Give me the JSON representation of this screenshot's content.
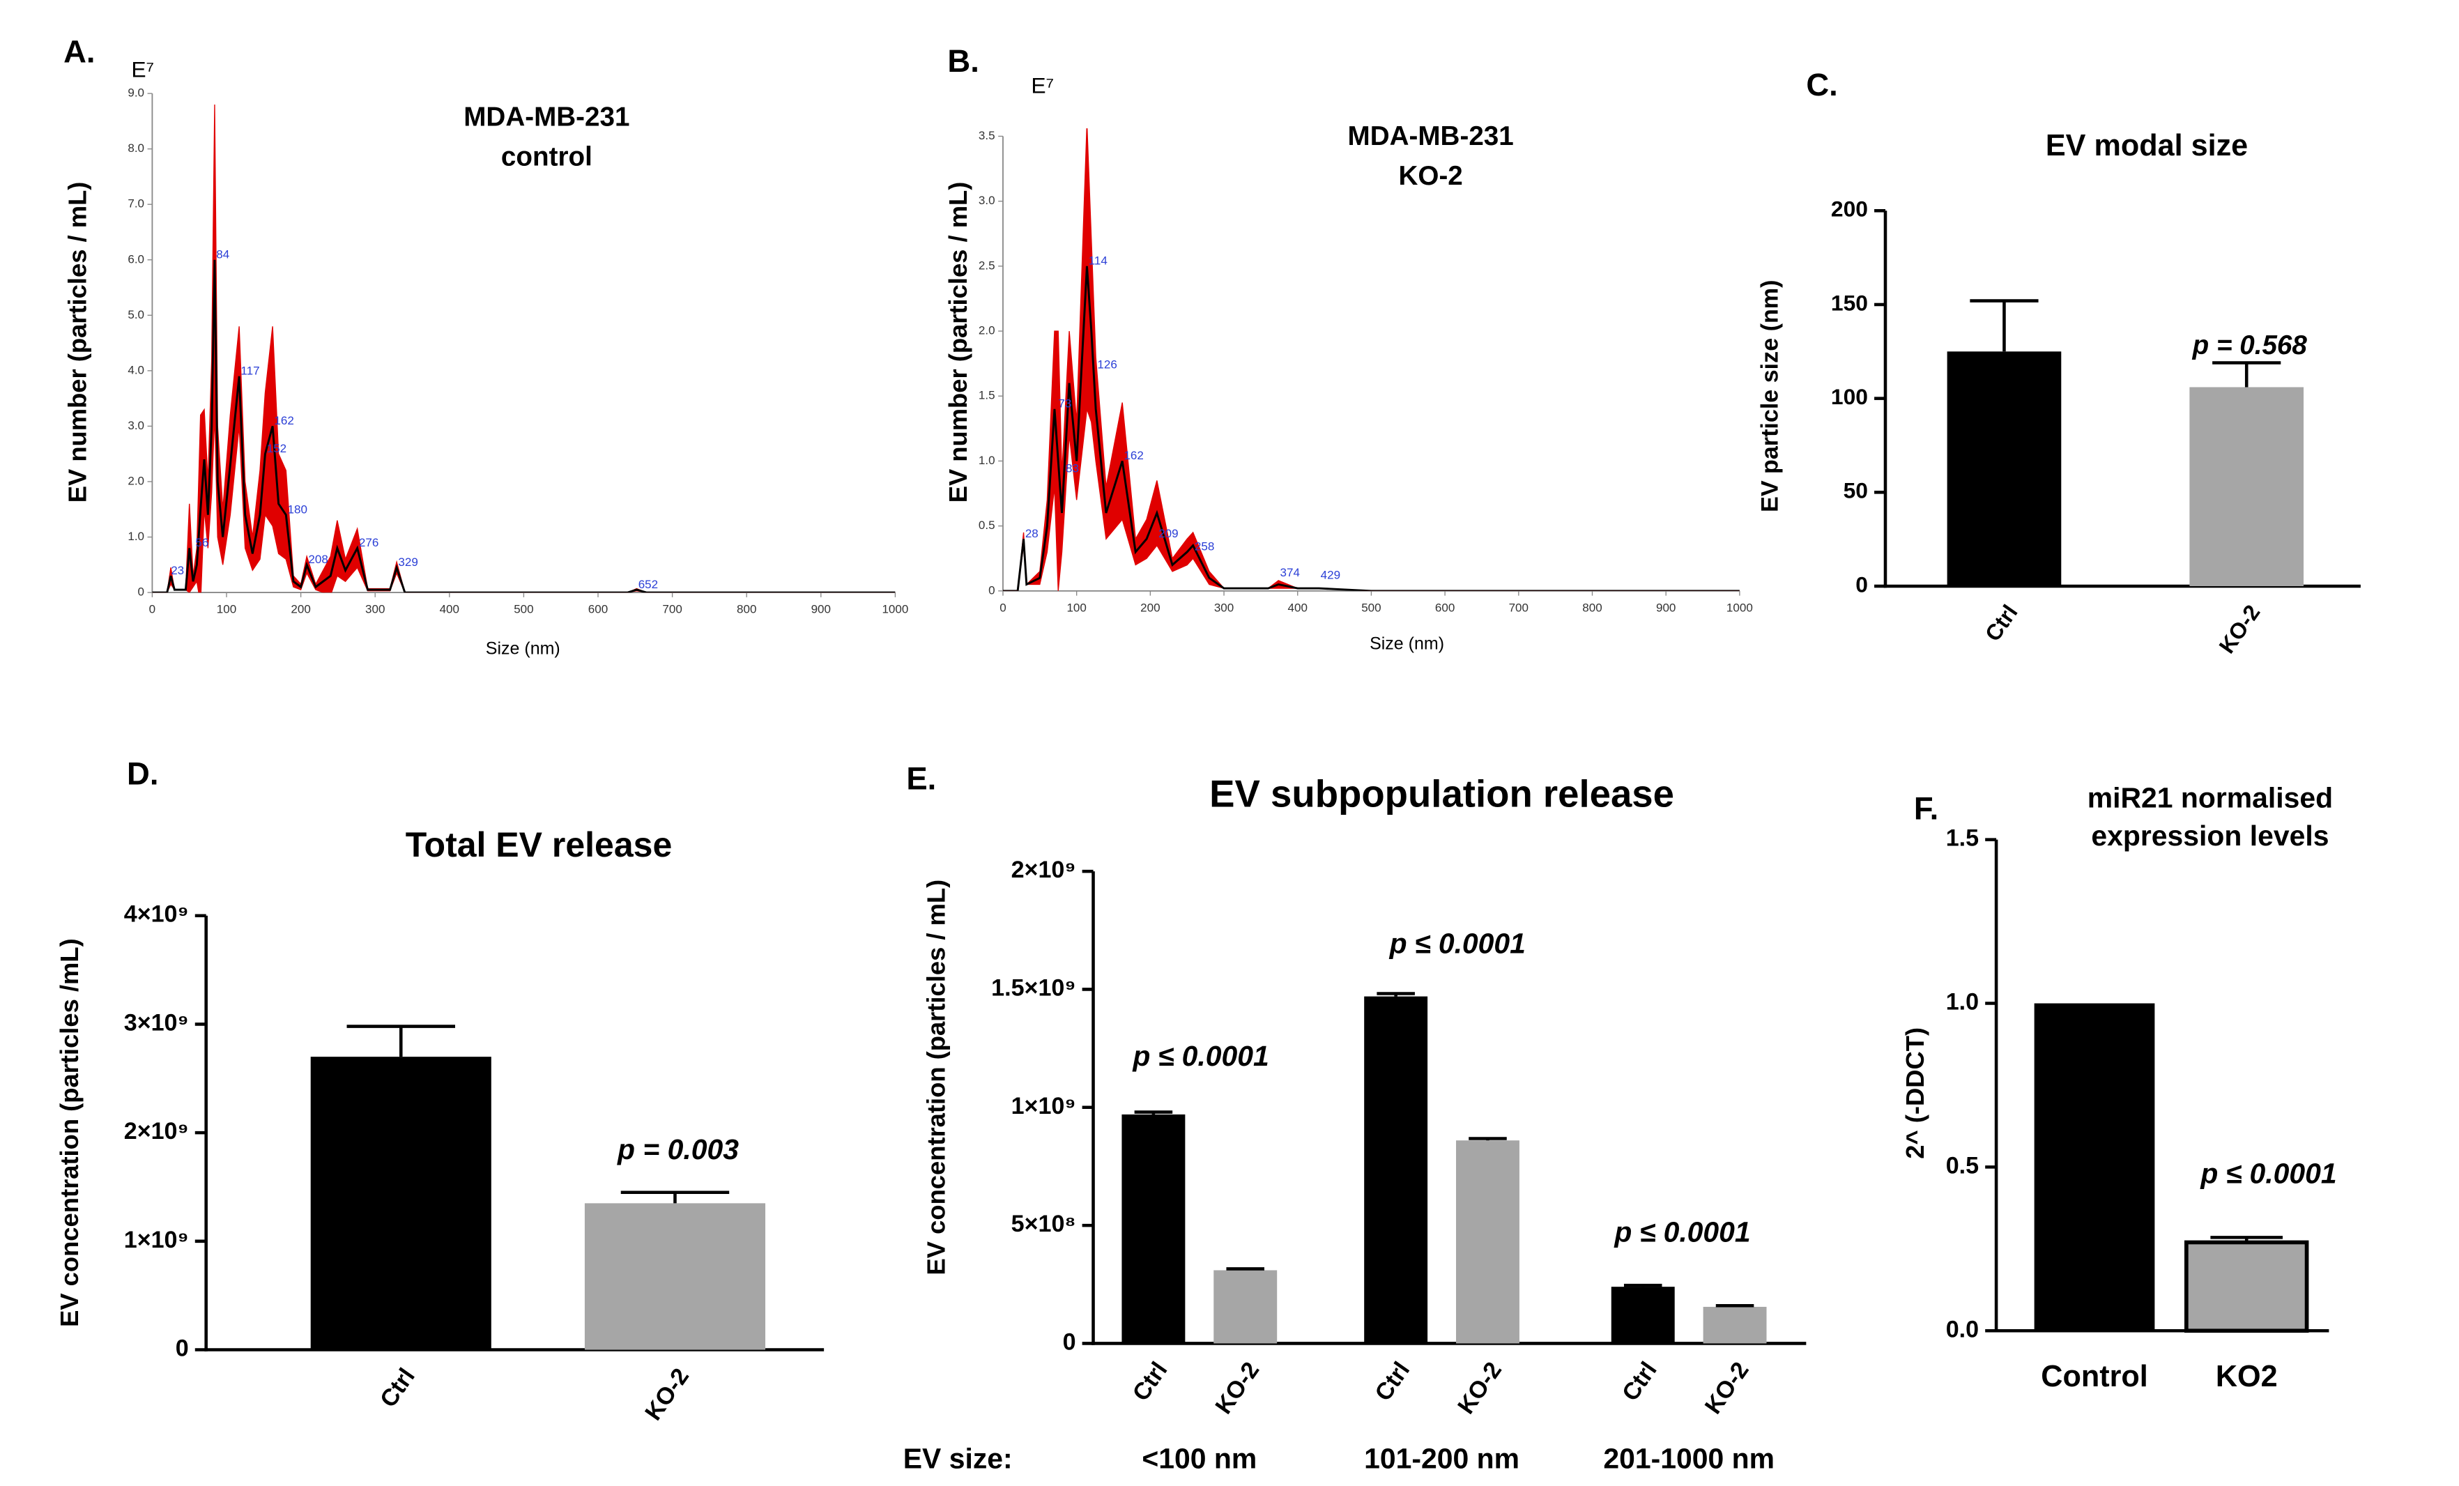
{
  "chart_data": [
    {
      "type": "line",
      "panel_label": "A.",
      "y_unit": "E⁷",
      "title": [
        "MDA-MB-231",
        "control"
      ],
      "x_label": "Size (nm)",
      "y_label": "EV number (particles / mL)",
      "x": [
        0,
        20,
        25,
        30,
        45,
        50,
        55,
        60,
        65,
        70,
        75,
        80,
        84,
        88,
        95,
        105,
        117,
        125,
        135,
        145,
        152,
        162,
        170,
        180,
        190,
        200,
        208,
        220,
        240,
        249,
        260,
        276,
        290,
        320,
        329,
        340,
        400,
        640,
        652,
        665,
        1000
      ],
      "values": [
        0,
        0,
        0.3,
        0.05,
        0.05,
        0.8,
        0.2,
        0.5,
        1.5,
        2.4,
        1.4,
        3.0,
        6.0,
        2.0,
        1.0,
        2.3,
        3.9,
        1.4,
        0.7,
        1.4,
        2.5,
        3.0,
        1.6,
        1.4,
        0.2,
        0.1,
        0.5,
        0.1,
        0.3,
        0.8,
        0.4,
        0.8,
        0.05,
        0.05,
        0.45,
        0,
        0,
        0,
        0.05,
        0,
        0
      ],
      "errors": [
        0,
        0,
        0.15,
        0,
        0,
        0.8,
        0.1,
        0.3,
        1.7,
        0.9,
        0.6,
        1.2,
        2.8,
        1.0,
        0.5,
        0.9,
        0.9,
        0.6,
        0.3,
        0.8,
        1.1,
        1.8,
        0.9,
        0.8,
        0.1,
        0.05,
        0.15,
        0.05,
        0.35,
        0.5,
        0.2,
        0.35,
        0.02,
        0.02,
        0.1,
        0,
        0,
        0,
        0.02,
        0,
        0
      ],
      "color": "#000000",
      "band_color": "#e00000",
      "annotation_color": "#2b3fd6",
      "annotations": [
        {
          "x": 23,
          "y": 0.3,
          "label": "23"
        },
        {
          "x": 56,
          "y": 0.8,
          "label": "56"
        },
        {
          "x": 84,
          "y": 6.0,
          "label": "84"
        },
        {
          "x": 117,
          "y": 3.9,
          "label": "117"
        },
        {
          "x": 152,
          "y": 2.5,
          "label": "152"
        },
        {
          "x": 162,
          "y": 3.0,
          "label": "162"
        },
        {
          "x": 180,
          "y": 1.4,
          "label": "180"
        },
        {
          "x": 208,
          "y": 0.5,
          "label": "208"
        },
        {
          "x": 276,
          "y": 0.8,
          "label": "276"
        },
        {
          "x": 329,
          "y": 0.45,
          "label": "329"
        },
        {
          "x": 652,
          "y": 0.05,
          "label": "652"
        }
      ],
      "xlim": [
        0,
        1000
      ],
      "xticks": [
        0,
        100,
        200,
        300,
        400,
        500,
        600,
        700,
        800,
        900,
        1000
      ],
      "ylim": [
        0,
        9
      ],
      "yticks": [
        0,
        {
          "value": 1,
          "label": "1.0"
        },
        {
          "value": 2,
          "label": "2.0"
        },
        {
          "value": 3,
          "label": "3.0"
        },
        {
          "value": 4,
          "label": "4.0"
        },
        {
          "value": 5,
          "label": "5.0"
        },
        {
          "value": 6,
          "label": "6.0"
        },
        {
          "value": 7,
          "label": "7.0"
        },
        {
          "value": 8,
          "label": "8.0"
        },
        {
          "value": 9,
          "label": "9.0"
        }
      ]
    },
    {
      "type": "line",
      "panel_label": "B.",
      "y_unit": "E⁷",
      "title": [
        "MDA-MB-231",
        "KO-2"
      ],
      "x_label": "Size (nm)",
      "y_label": "EV number (particles / mL)",
      "x": [
        0,
        20,
        28,
        32,
        50,
        60,
        70,
        75,
        80,
        90,
        100,
        114,
        120,
        126,
        140,
        162,
        180,
        195,
        209,
        230,
        250,
        258,
        280,
        300,
        360,
        374,
        400,
        429,
        500,
        1000
      ],
      "values": [
        0,
        0,
        0.4,
        0.05,
        0.1,
        0.5,
        1.4,
        1.0,
        0.6,
        1.6,
        1.0,
        2.5,
        2.0,
        1.4,
        0.6,
        1.0,
        0.3,
        0.4,
        0.6,
        0.2,
        0.3,
        0.35,
        0.1,
        0.02,
        0.02,
        0.05,
        0.02,
        0.02,
        0,
        0
      ],
      "errors": [
        0,
        0,
        0.05,
        0,
        0.05,
        0.2,
        0.6,
        1.0,
        0.3,
        0.4,
        0.3,
        1.1,
        0.7,
        0.4,
        0.2,
        0.45,
        0.1,
        0.15,
        0.25,
        0.05,
        0.1,
        0.1,
        0.05,
        0,
        0,
        0.03,
        0,
        0,
        0,
        0
      ],
      "color": "#000000",
      "band_color": "#e00000",
      "annotation_color": "#2b3fd6",
      "annotations": [
        {
          "x": 28,
          "y": 0.4,
          "label": "28"
        },
        {
          "x": 73,
          "y": 1.4,
          "label": "73"
        },
        {
          "x": 83,
          "y": 0.9,
          "label": "83"
        },
        {
          "x": 114,
          "y": 2.5,
          "label": "114"
        },
        {
          "x": 126,
          "y": 1.7,
          "label": "126"
        },
        {
          "x": 162,
          "y": 1.0,
          "label": "162"
        },
        {
          "x": 209,
          "y": 0.4,
          "label": "209"
        },
        {
          "x": 258,
          "y": 0.3,
          "label": "258"
        },
        {
          "x": 374,
          "y": 0.1,
          "label": "374"
        },
        {
          "x": 429,
          "y": 0.08,
          "label": "429"
        }
      ],
      "xlim": [
        0,
        1000
      ],
      "xticks": [
        0,
        100,
        200,
        300,
        400,
        500,
        600,
        700,
        800,
        900,
        1000
      ],
      "ylim": [
        0,
        3.5
      ],
      "yticks": [
        0,
        0.5,
        {
          "value": 1,
          "label": "1.0"
        },
        1.5,
        {
          "value": 2,
          "label": "2.0"
        },
        2.5,
        {
          "value": 3,
          "label": "3.0"
        },
        3.5
      ]
    },
    {
      "type": "bar",
      "panel_label": "C.",
      "title": "EV modal size",
      "y_label": "EV particle size (nm)",
      "categories": [
        "Ctrl",
        "KO-2"
      ],
      "values": [
        125,
        106
      ],
      "errors": [
        27,
        13
      ],
      "colors": [
        "#000000",
        "#a6a6a6"
      ],
      "annotations": [
        "p = 0.568"
      ],
      "ylim": [
        0,
        200
      ],
      "yticks": [
        0,
        50,
        100,
        150,
        200
      ]
    },
    {
      "type": "bar",
      "panel_label": "D.",
      "title": "Total EV release",
      "y_label": "EV concentration (particles /mL)",
      "categories": [
        "Ctrl",
        "KO-2"
      ],
      "values": [
        2700000000,
        1350000000
      ],
      "errors": [
        280000000,
        100000000
      ],
      "colors": [
        "#000000",
        "#a6a6a6"
      ],
      "annotations": [
        "p = 0.003"
      ],
      "ylim": [
        0,
        4000000000
      ],
      "yticks": [
        0,
        {
          "value": 1000000000,
          "label": "1×10⁹"
        },
        {
          "value": 2000000000,
          "label": "2×10⁹"
        },
        {
          "value": 3000000000,
          "label": "3×10⁹"
        },
        {
          "value": 4000000000,
          "label": "4×10⁹"
        }
      ]
    },
    {
      "type": "grouped_bar",
      "panel_label": "E.",
      "title": "EV subpopulation release",
      "y_label": "EV concentration (particles / mL)",
      "group_label": "EV size:",
      "categories": [
        "<100 nm",
        "101-200 nm",
        "201-1000 nm"
      ],
      "series": [
        {
          "name": "Ctrl",
          "color": "#000000",
          "values": [
            970000000,
            1470000000,
            240000000
          ],
          "errors": [
            10000000,
            12000000,
            6000000
          ]
        },
        {
          "name": "KO-2",
          "color": "#a6a6a6",
          "values": [
            310000000,
            860000000,
            155000000
          ],
          "errors": [
            6000000,
            8000000,
            5000000
          ]
        }
      ],
      "annotations": [
        "p ≤ 0.0001",
        "p ≤ 0.0001",
        "p ≤ 0.0001"
      ],
      "ylim": [
        0,
        2000000000
      ],
      "yticks": [
        0,
        {
          "value": 500000000,
          "label": "5×10⁸"
        },
        {
          "value": 1000000000,
          "label": "1×10⁹"
        },
        {
          "value": 1500000000,
          "label": "1.5×10⁹"
        },
        {
          "value": 2000000000,
          "label": "2×10⁹"
        }
      ]
    },
    {
      "type": "bar",
      "panel_label": "F.",
      "title": [
        "miR21 normalised",
        "expression levels"
      ],
      "y_label": "2^ (-DDCT)",
      "categories": [
        "Control",
        "KO2"
      ],
      "values": [
        1.0,
        0.27
      ],
      "errors": [
        0,
        0.015
      ],
      "colors": [
        "#000000",
        "#a6a6a6"
      ],
      "annotations": [
        "p ≤ 0.0001"
      ],
      "ylim": [
        0,
        1.5
      ],
      "yticks": [
        {
          "value": 0,
          "label": "0.0"
        },
        0.5,
        {
          "value": 1,
          "label": "1.0"
        },
        1.5
      ]
    }
  ]
}
